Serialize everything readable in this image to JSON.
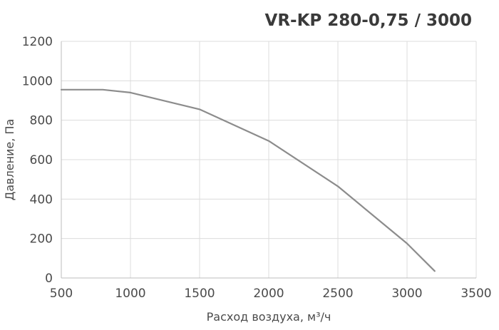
{
  "chart_data": {
    "type": "line",
    "title": "VR-KP 280-0,75 / 3000",
    "xlabel": "Расход воздуха, м³/ч",
    "ylabel": "Давление, Па",
    "xlim": [
      500,
      3500
    ],
    "ylim": [
      0,
      1200
    ],
    "x_ticks": [
      500,
      1000,
      1500,
      2000,
      2500,
      3000,
      3500
    ],
    "y_ticks": [
      0,
      200,
      400,
      600,
      800,
      1000,
      1200
    ],
    "grid": true,
    "series": [
      {
        "color": "#8c8c8c",
        "x": [
          500,
          800,
          1000,
          1500,
          2000,
          2500,
          3000,
          3200
        ],
        "y": [
          955,
          955,
          940,
          855,
          695,
          465,
          175,
          35
        ]
      }
    ]
  }
}
